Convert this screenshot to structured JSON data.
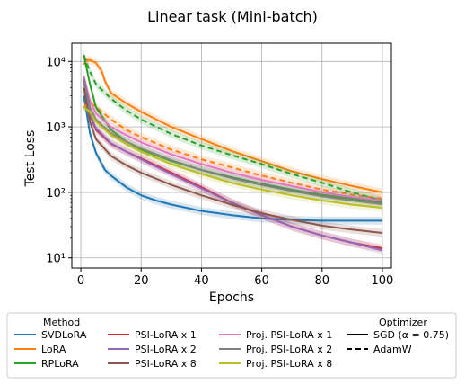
{
  "chart_data": {
    "type": "line",
    "title": "Linear task (Mini-batch)",
    "xlabel": "Epochs",
    "ylabel": "Test Loss",
    "xlim": [
      -3,
      103
    ],
    "ylim": [
      7,
      19000
    ],
    "yscale": "log",
    "grid": true,
    "x_ticks": [
      0,
      20,
      40,
      60,
      80,
      100
    ],
    "x_tick_labels": [
      "0",
      "20",
      "40",
      "60",
      "80",
      "100"
    ],
    "y_ticks": [
      10,
      100,
      1000,
      10000
    ],
    "y_tick_labels": [
      "10¹",
      "10²",
      "10³",
      "10⁴"
    ],
    "legend": {
      "position": "below",
      "method_header": "Method",
      "optimizer_header": "Optimizer",
      "optimizers": [
        {
          "label": "SGD (α = 0.75)",
          "style": "solid"
        },
        {
          "label": "AdamW",
          "style": "dashed"
        }
      ]
    },
    "series": [
      {
        "name": "SVDLoRA",
        "color": "#1f77b4",
        "style": "solid",
        "x": [
          1,
          3,
          5,
          8,
          10,
          15,
          20,
          25,
          30,
          40,
          50,
          60,
          70,
          80,
          90,
          100
        ],
        "y": [
          3000,
          800,
          400,
          220,
          180,
          120,
          90,
          75,
          65,
          52,
          45,
          40,
          38,
          37,
          37,
          37
        ]
      },
      {
        "name": "LoRA",
        "color": "#ff7f0e",
        "style": "solid",
        "x": [
          1,
          2,
          3,
          5,
          7,
          8,
          10,
          15,
          20,
          30,
          40,
          50,
          60,
          70,
          80,
          90,
          100
        ],
        "y": [
          9000,
          10500,
          10500,
          9500,
          7000,
          5000,
          3300,
          2300,
          1700,
          1000,
          650,
          430,
          300,
          210,
          160,
          125,
          100
        ]
      },
      {
        "name": "LoRA",
        "color": "#ff7f0e",
        "style": "dashed",
        "x": [
          1,
          3,
          5,
          10,
          15,
          20,
          30,
          40,
          50,
          60,
          70,
          80,
          90,
          100
        ],
        "y": [
          2000,
          2400,
          2000,
          1300,
          900,
          700,
          450,
          320,
          240,
          180,
          140,
          110,
          92,
          80
        ]
      },
      {
        "name": "RPLoRA",
        "color": "#2ca02c",
        "style": "solid",
        "x": [
          1,
          3,
          5,
          10,
          15,
          20,
          30,
          40,
          50,
          60,
          70,
          80,
          90,
          100
        ],
        "y": [
          12500,
          4500,
          2000,
          900,
          600,
          450,
          300,
          220,
          170,
          135,
          110,
          92,
          80,
          70
        ]
      },
      {
        "name": "RPLoRA",
        "color": "#2ca02c",
        "style": "dashed",
        "x": [
          1,
          3,
          5,
          10,
          15,
          20,
          30,
          40,
          50,
          60,
          70,
          80,
          90,
          100
        ],
        "y": [
          12500,
          7000,
          4500,
          2700,
          1800,
          1300,
          780,
          520,
          370,
          270,
          190,
          140,
          100,
          75
        ]
      },
      {
        "name": "PSI-LoRA x 1",
        "color": "#d62728",
        "style": "solid",
        "x": [
          1,
          3,
          5,
          10,
          15,
          20,
          30,
          40,
          50,
          60,
          70,
          80,
          90,
          100
        ],
        "y": [
          5000,
          1500,
          900,
          550,
          420,
          330,
          200,
          120,
          70,
          45,
          30,
          22,
          17,
          14
        ]
      },
      {
        "name": "PSI-LoRA x 2",
        "color": "#9467bd",
        "style": "solid",
        "x": [
          1,
          3,
          5,
          10,
          15,
          20,
          30,
          40,
          50,
          60,
          70,
          80,
          90,
          100
        ],
        "y": [
          5000,
          1600,
          950,
          560,
          420,
          320,
          190,
          115,
          70,
          45,
          30,
          22,
          17,
          13
        ]
      },
      {
        "name": "PSI-LoRA x 8",
        "color": "#8c564b",
        "style": "solid",
        "x": [
          1,
          3,
          5,
          10,
          15,
          20,
          30,
          40,
          50,
          60,
          70,
          80,
          90,
          100
        ],
        "y": [
          4000,
          1200,
          650,
          360,
          260,
          200,
          130,
          90,
          65,
          48,
          38,
          31,
          27,
          24
        ]
      },
      {
        "name": "Proj. PSI-LoRA x 1",
        "color": "#e377c2",
        "style": "solid",
        "x": [
          1,
          3,
          5,
          10,
          15,
          20,
          30,
          40,
          50,
          60,
          70,
          80,
          90,
          100
        ],
        "y": [
          6000,
          2500,
          1600,
          1000,
          750,
          580,
          380,
          270,
          200,
          155,
          125,
          100,
          85,
          75
        ]
      },
      {
        "name": "Proj. PSI-LoRA x 2",
        "color": "#7f7f7f",
        "style": "solid",
        "x": [
          1,
          3,
          5,
          10,
          15,
          20,
          30,
          40,
          50,
          60,
          70,
          80,
          90,
          100
        ],
        "y": [
          5500,
          2000,
          1300,
          800,
          600,
          470,
          310,
          220,
          165,
          130,
          105,
          87,
          75,
          66
        ]
      },
      {
        "name": "Proj. PSI-LoRA x 8",
        "color": "#bcbd22",
        "style": "solid",
        "x": [
          1,
          3,
          5,
          10,
          15,
          20,
          30,
          40,
          50,
          60,
          70,
          80,
          90,
          100
        ],
        "y": [
          2000,
          1700,
          1200,
          750,
          550,
          420,
          270,
          190,
          140,
          110,
          90,
          75,
          65,
          58
        ]
      }
    ]
  }
}
